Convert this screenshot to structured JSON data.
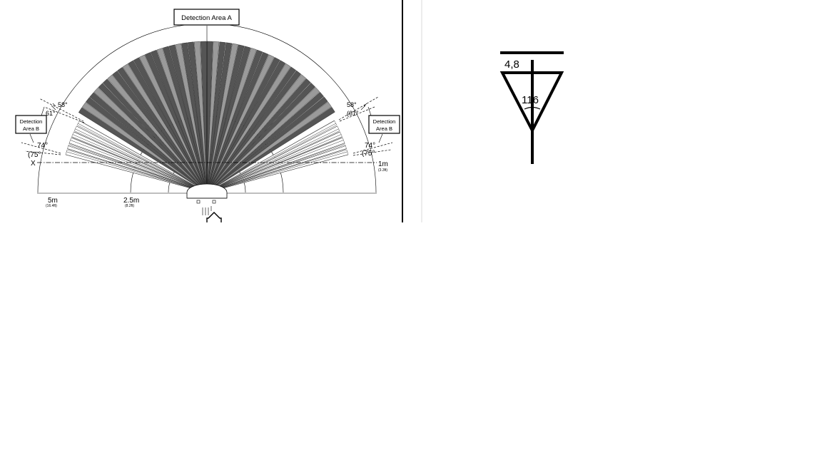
{
  "diagram": {
    "area_a_label": "Detection Area A",
    "area_b_left_line1": "Detection",
    "area_b_left_line2": "Area B",
    "area_b_right_line1": "Detection",
    "area_b_right_line2": "Area B",
    "angle_left_58": "58°",
    "angle_left_61": "61°",
    "angle_left_74": "74°",
    "angle_left_75": "(75°",
    "angle_right_58": "58°",
    "angle_right_61": "(61°",
    "angle_right_74": "74°",
    "angle_right_75": "(75°",
    "x_axis_label": "X",
    "dist_5m": "5m",
    "dist_5m_ft": "(16.4ft)",
    "dist_25m": "2.5m",
    "dist_25m_ft": "(8.2ft)",
    "dist_1m": "1m",
    "dist_1m_ft": "(3.3ft)"
  },
  "sketch": {
    "label_top": "4,8",
    "label_angle": "116"
  },
  "colors": {
    "ink": "#000000",
    "fan_dark": "#555555",
    "fan_light": "#9a9a9a",
    "divider_light": "#d8d8d8"
  }
}
